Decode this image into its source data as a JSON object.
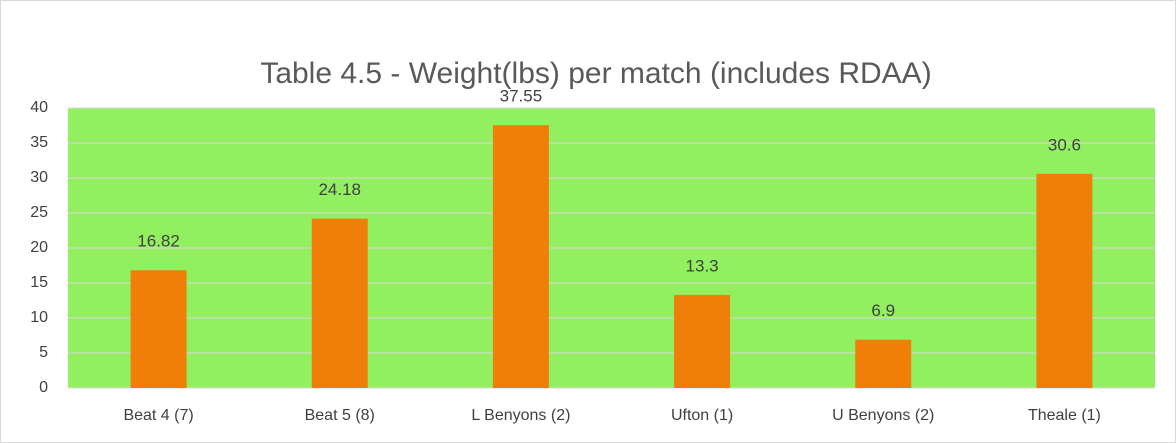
{
  "chart_data": {
    "type": "bar",
    "title": "Table 4.5 - Weight(lbs) per match (includes RDAA)",
    "categories": [
      "Beat 4 (7)",
      "Beat 5 (8)",
      "L Benyons (2)",
      "Ufton (1)",
      "U Benyons (2)",
      "Theale (1)"
    ],
    "values": [
      16.82,
      24.18,
      37.55,
      13.3,
      6.9,
      30.6
    ],
    "color": "#f07f09",
    "plot_background": "#92f060",
    "ylim": [
      0,
      40
    ],
    "yticks": [
      0,
      5,
      10,
      15,
      20,
      25,
      30,
      35,
      40
    ],
    "grid": true
  }
}
